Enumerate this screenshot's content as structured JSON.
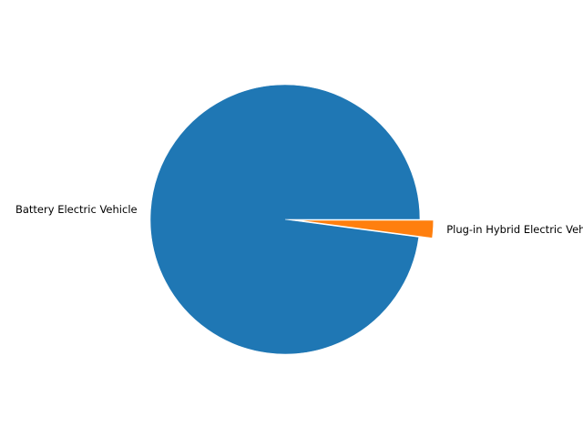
{
  "chart_data": {
    "type": "pie",
    "categories": [
      "Battery Electric Vehicle",
      "Plug-in Hybrid Electric Vehicle"
    ],
    "values": [
      97.9,
      2.1
    ],
    "colors": [
      "#1f77b4",
      "#ff7f0e"
    ],
    "explode": [
      0,
      0.1
    ],
    "start_angle": 0,
    "direction": "counterclockwise",
    "legend": "none",
    "title": ""
  }
}
